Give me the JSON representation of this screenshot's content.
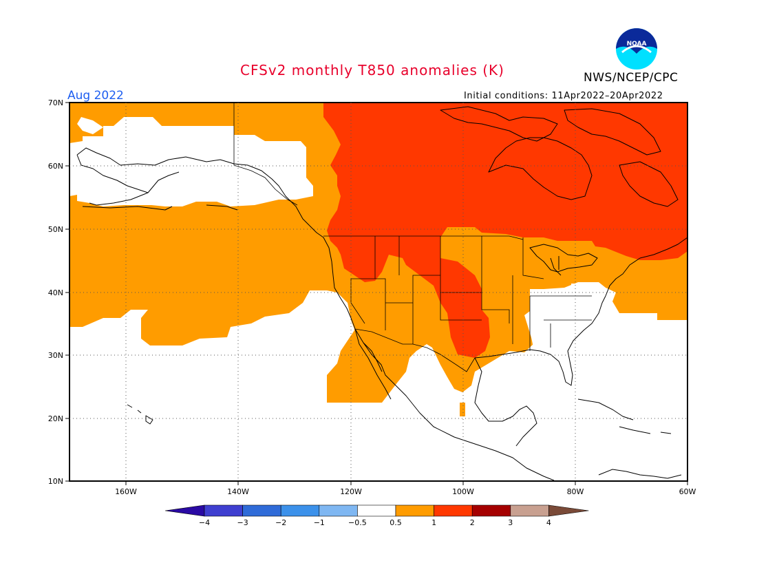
{
  "header": {
    "title": "CFSv2 monthly T850 anomalies (K)",
    "agency": "NWS/NCEP/CPC",
    "logo_text": "NOAA",
    "valid_month": "Aug 2022",
    "initial_conditions": "Initial conditions: 11Apr2022–20Apr2022"
  },
  "axes": {
    "lat_labels": [
      "70N",
      "60N",
      "50N",
      "40N",
      "30N",
      "20N",
      "10N"
    ],
    "lon_labels": [
      "160W",
      "140W",
      "120W",
      "100W",
      "80W",
      "60W"
    ]
  },
  "colorbar": {
    "ticks": [
      "−4",
      "−3",
      "−2",
      "−1",
      "−0.5",
      "0.5",
      "1",
      "2",
      "3",
      "4"
    ],
    "colors": [
      "#2a0aa4",
      "#3f3fd0",
      "#2f6bd8",
      "#3c91ea",
      "#7fb7f2",
      "#ffffff",
      "#ff9c00",
      "#ff3800",
      "#a50000",
      "#c8a090",
      "#7a4a38"
    ]
  },
  "colors": {
    "anom_0_5_to_1": "#ff9c00",
    "anom_1_to_2": "#ff3800",
    "background": "#ffffff",
    "title": "#e8002b",
    "month": "#1e5ef0"
  }
}
